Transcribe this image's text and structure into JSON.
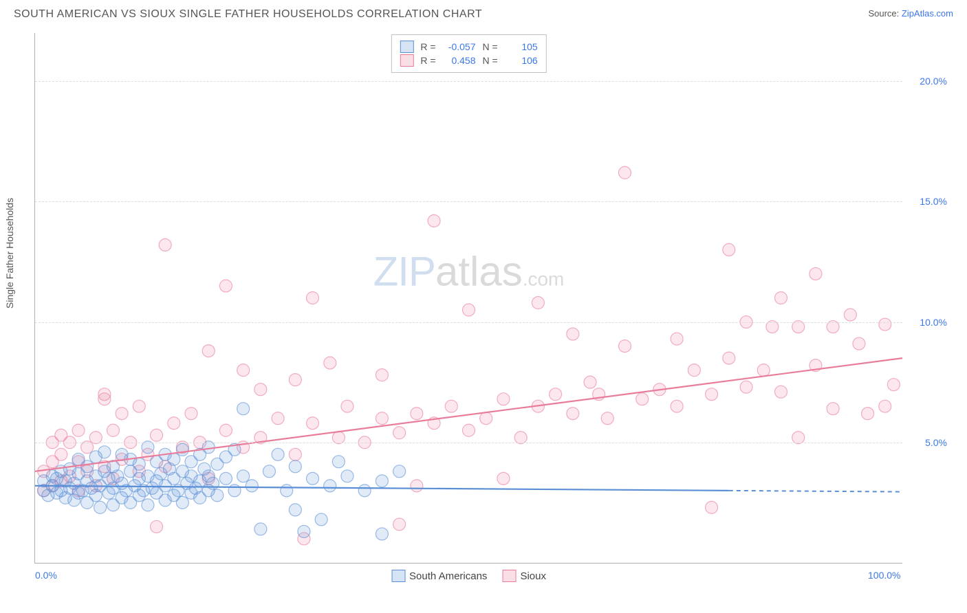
{
  "title": "SOUTH AMERICAN VS SIOUX SINGLE FATHER HOUSEHOLDS CORRELATION CHART",
  "source_prefix": "Source: ",
  "source_link": "ZipAtlas.com",
  "y_axis_label": "Single Father Households",
  "watermark": {
    "zip": "ZIP",
    "atlas": "atlas",
    "com": ".com"
  },
  "chart": {
    "type": "scatter",
    "xlim": [
      0,
      100
    ],
    "ylim": [
      0,
      22
    ],
    "x_ticks": [
      {
        "value": 0,
        "label": "0.0%"
      },
      {
        "value": 100,
        "label": "100.0%"
      }
    ],
    "y_ticks": [
      {
        "value": 5,
        "label": "5.0%"
      },
      {
        "value": 10,
        "label": "10.0%"
      },
      {
        "value": 15,
        "label": "15.0%"
      },
      {
        "value": 20,
        "label": "20.0%"
      }
    ],
    "background_color": "#ffffff",
    "grid_color": "#dcdcdc",
    "axis_color": "#b0b0b0",
    "tick_label_color": "#3b78e7",
    "marker_radius": 9,
    "marker_stroke_width": 1.2,
    "marker_fill_opacity": 0.18,
    "series": [
      {
        "name": "South Americans",
        "color_stroke": "#5a8fd6",
        "color_fill": "#5a8fd6",
        "r_label": "R = ",
        "r_value": "-0.057",
        "n_label": "N = ",
        "n_value": "105",
        "trend": {
          "x1": 0,
          "y1": 3.2,
          "x2": 80,
          "y2": 3.0,
          "dash_extend_to": 100
        },
        "points": [
          [
            1,
            3.0
          ],
          [
            1,
            3.4
          ],
          [
            1.5,
            2.8
          ],
          [
            2,
            3.2
          ],
          [
            2,
            3.6
          ],
          [
            2.5,
            2.9
          ],
          [
            2.5,
            3.5
          ],
          [
            3,
            3.0
          ],
          [
            3,
            3.8
          ],
          [
            3.5,
            2.7
          ],
          [
            3.5,
            3.4
          ],
          [
            4,
            3.1
          ],
          [
            4,
            3.9
          ],
          [
            4.5,
            2.6
          ],
          [
            4.5,
            3.3
          ],
          [
            5,
            2.9
          ],
          [
            5,
            3.7
          ],
          [
            5,
            4.3
          ],
          [
            5.5,
            3.0
          ],
          [
            6,
            2.5
          ],
          [
            6,
            3.4
          ],
          [
            6,
            4.0
          ],
          [
            6.5,
            3.1
          ],
          [
            7,
            2.8
          ],
          [
            7,
            3.6
          ],
          [
            7,
            4.4
          ],
          [
            7.5,
            2.3
          ],
          [
            7.5,
            3.2
          ],
          [
            8,
            3.8
          ],
          [
            8,
            4.6
          ],
          [
            8.5,
            2.9
          ],
          [
            8.5,
            3.5
          ],
          [
            9,
            2.4
          ],
          [
            9,
            3.1
          ],
          [
            9,
            4.0
          ],
          [
            9.5,
            3.6
          ],
          [
            10,
            2.7
          ],
          [
            10,
            3.3
          ],
          [
            10,
            4.5
          ],
          [
            10.5,
            3.0
          ],
          [
            11,
            2.5
          ],
          [
            11,
            3.8
          ],
          [
            11,
            4.3
          ],
          [
            11.5,
            3.2
          ],
          [
            12,
            2.8
          ],
          [
            12,
            3.5
          ],
          [
            12,
            4.1
          ],
          [
            12.5,
            3.0
          ],
          [
            13,
            2.4
          ],
          [
            13,
            3.6
          ],
          [
            13,
            4.8
          ],
          [
            13.5,
            3.1
          ],
          [
            14,
            2.9
          ],
          [
            14,
            3.4
          ],
          [
            14,
            4.2
          ],
          [
            14.5,
            3.7
          ],
          [
            15,
            2.6
          ],
          [
            15,
            3.2
          ],
          [
            15,
            4.5
          ],
          [
            15.5,
            3.9
          ],
          [
            16,
            2.8
          ],
          [
            16,
            3.5
          ],
          [
            16,
            4.3
          ],
          [
            16.5,
            3.0
          ],
          [
            17,
            2.5
          ],
          [
            17,
            3.8
          ],
          [
            17,
            4.7
          ],
          [
            17.5,
            3.3
          ],
          [
            18,
            2.9
          ],
          [
            18,
            3.6
          ],
          [
            18,
            4.2
          ],
          [
            18.5,
            3.1
          ],
          [
            19,
            2.7
          ],
          [
            19,
            3.4
          ],
          [
            19,
            4.5
          ],
          [
            19.5,
            3.9
          ],
          [
            20,
            3.0
          ],
          [
            20,
            3.6
          ],
          [
            20,
            4.8
          ],
          [
            20.5,
            3.3
          ],
          [
            21,
            2.8
          ],
          [
            21,
            4.1
          ],
          [
            22,
            3.5
          ],
          [
            22,
            4.4
          ],
          [
            23,
            3.0
          ],
          [
            23,
            4.7
          ],
          [
            24,
            3.6
          ],
          [
            24,
            6.4
          ],
          [
            25,
            3.2
          ],
          [
            26,
            1.4
          ],
          [
            27,
            3.8
          ],
          [
            28,
            4.5
          ],
          [
            29,
            3.0
          ],
          [
            30,
            2.2
          ],
          [
            30,
            4.0
          ],
          [
            31,
            1.3
          ],
          [
            32,
            3.5
          ],
          [
            33,
            1.8
          ],
          [
            34,
            3.2
          ],
          [
            35,
            4.2
          ],
          [
            36,
            3.6
          ],
          [
            38,
            3.0
          ],
          [
            40,
            1.2
          ],
          [
            40,
            3.4
          ],
          [
            42,
            3.8
          ]
        ]
      },
      {
        "name": "Sioux",
        "color_stroke": "#e97c9a",
        "color_fill": "#e97c9a",
        "r_label": "R = ",
        "r_value": "0.458",
        "n_label": "N = ",
        "n_value": "106",
        "trend": {
          "x1": 0,
          "y1": 3.8,
          "x2": 100,
          "y2": 8.5
        },
        "points": [
          [
            1,
            3.0
          ],
          [
            1,
            3.8
          ],
          [
            2,
            3.2
          ],
          [
            2,
            4.2
          ],
          [
            2,
            5.0
          ],
          [
            3,
            3.4
          ],
          [
            3,
            4.5
          ],
          [
            3,
            5.3
          ],
          [
            4,
            3.6
          ],
          [
            4,
            5.0
          ],
          [
            5,
            3.0
          ],
          [
            5,
            4.2
          ],
          [
            5,
            5.5
          ],
          [
            6,
            3.8
          ],
          [
            6,
            4.8
          ],
          [
            7,
            3.2
          ],
          [
            7,
            5.2
          ],
          [
            8,
            4.0
          ],
          [
            8,
            6.8
          ],
          [
            8,
            7.0
          ],
          [
            9,
            3.5
          ],
          [
            9,
            5.5
          ],
          [
            10,
            4.3
          ],
          [
            10,
            6.2
          ],
          [
            11,
            5.0
          ],
          [
            12,
            3.8
          ],
          [
            12,
            6.5
          ],
          [
            13,
            4.5
          ],
          [
            14,
            5.3
          ],
          [
            14,
            1.5
          ],
          [
            15,
            4.0
          ],
          [
            15,
            13.2
          ],
          [
            16,
            5.8
          ],
          [
            17,
            4.8
          ],
          [
            18,
            6.2
          ],
          [
            19,
            5.0
          ],
          [
            20,
            3.5
          ],
          [
            20,
            8.8
          ],
          [
            22,
            5.5
          ],
          [
            22,
            11.5
          ],
          [
            24,
            4.8
          ],
          [
            24,
            8.0
          ],
          [
            26,
            5.2
          ],
          [
            26,
            7.2
          ],
          [
            28,
            6.0
          ],
          [
            30,
            4.5
          ],
          [
            30,
            7.6
          ],
          [
            31,
            1.0
          ],
          [
            32,
            5.8
          ],
          [
            32,
            11.0
          ],
          [
            34,
            8.3
          ],
          [
            35,
            5.2
          ],
          [
            36,
            6.5
          ],
          [
            38,
            5.0
          ],
          [
            40,
            6.0
          ],
          [
            40,
            7.8
          ],
          [
            42,
            5.4
          ],
          [
            42,
            1.6
          ],
          [
            44,
            6.2
          ],
          [
            44,
            3.2
          ],
          [
            46,
            5.8
          ],
          [
            46,
            14.2
          ],
          [
            48,
            6.5
          ],
          [
            50,
            5.5
          ],
          [
            50,
            10.5
          ],
          [
            52,
            6.0
          ],
          [
            54,
            6.8
          ],
          [
            54,
            3.5
          ],
          [
            56,
            5.2
          ],
          [
            58,
            6.5
          ],
          [
            58,
            10.8
          ],
          [
            60,
            7.0
          ],
          [
            62,
            6.2
          ],
          [
            62,
            9.5
          ],
          [
            64,
            7.5
          ],
          [
            65,
            7.0
          ],
          [
            66,
            6.0
          ],
          [
            68,
            9.0
          ],
          [
            68,
            16.2
          ],
          [
            70,
            6.8
          ],
          [
            72,
            7.2
          ],
          [
            74,
            6.5
          ],
          [
            74,
            9.3
          ],
          [
            76,
            8.0
          ],
          [
            78,
            7.0
          ],
          [
            78,
            2.3
          ],
          [
            80,
            8.5
          ],
          [
            80,
            13.0
          ],
          [
            82,
            7.3
          ],
          [
            82,
            10.0
          ],
          [
            84,
            8.0
          ],
          [
            85,
            9.8
          ],
          [
            86,
            7.1
          ],
          [
            86,
            11.0
          ],
          [
            88,
            5.2
          ],
          [
            88,
            9.8
          ],
          [
            90,
            8.2
          ],
          [
            90,
            12.0
          ],
          [
            92,
            6.4
          ],
          [
            92,
            9.8
          ],
          [
            94,
            10.3
          ],
          [
            95,
            9.1
          ],
          [
            96,
            6.2
          ],
          [
            98,
            9.9
          ],
          [
            98,
            6.5
          ],
          [
            99,
            7.4
          ]
        ]
      }
    ]
  },
  "legend": {
    "items": [
      {
        "label": "South Americans",
        "stroke": "#5a8fd6",
        "fill": "rgba(90,143,214,0.25)"
      },
      {
        "label": "Sioux",
        "stroke": "#e97c9a",
        "fill": "rgba(233,124,154,0.25)"
      }
    ]
  }
}
